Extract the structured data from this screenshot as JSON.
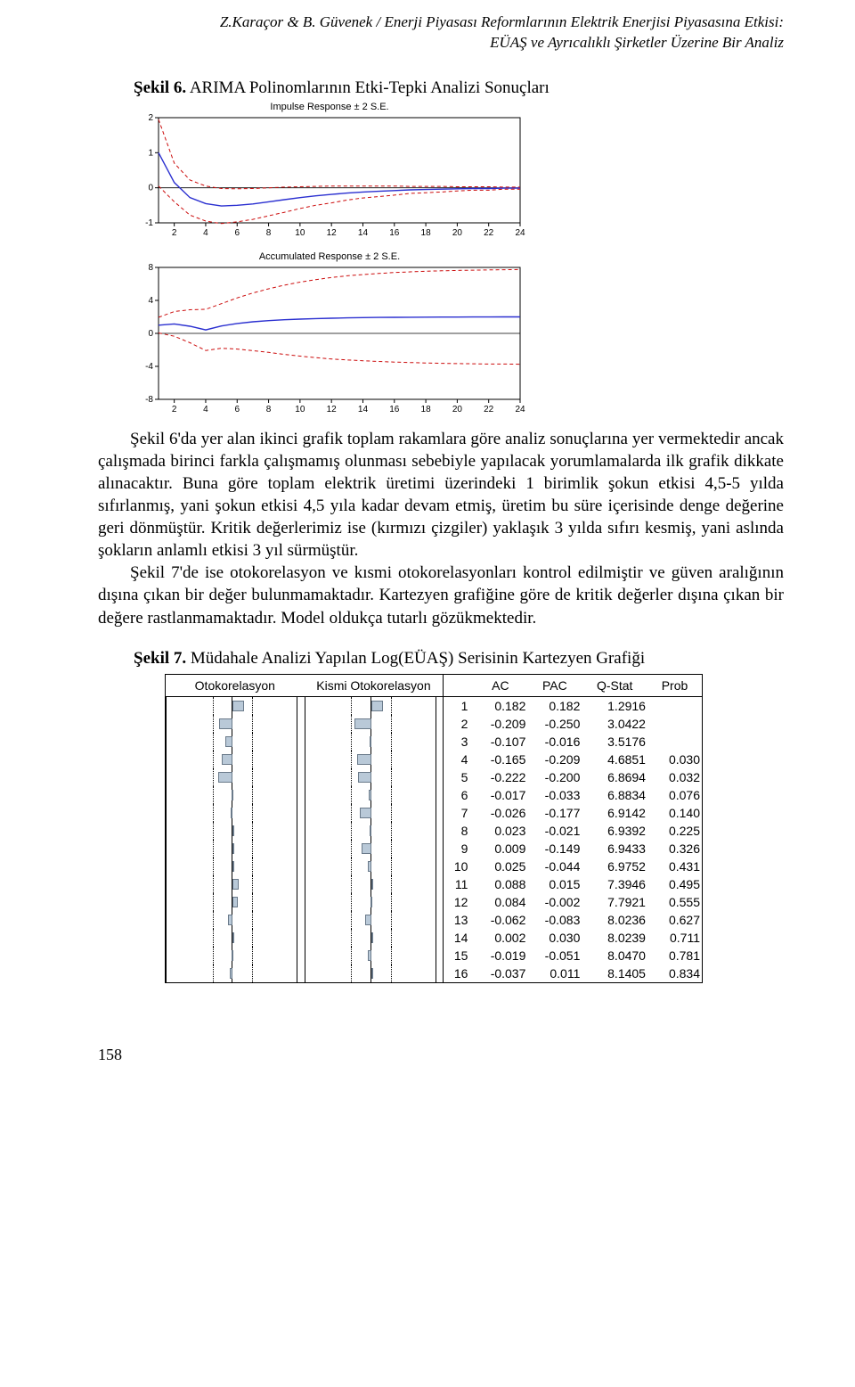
{
  "header": {
    "line1": "Z.Karaçor & B. Güvenek / Enerji Piyasası Reformlarının Elektrik Enerjisi Piyasasına Etkisi:",
    "line2": "EÜAŞ ve Ayrıcalıklı Şirketler Üzerine Bir Analiz"
  },
  "figure6": {
    "caption_bold": "Şekil 6.",
    "caption_rest": " ARIMA Polinomlarının Etki-Tepki Analizi Sonuçları",
    "chart1": {
      "type": "line",
      "title": "Impulse Response ± 2 S.E.",
      "title_fontsize": 11,
      "background_color": "#ffffff",
      "axis_color": "#000000",
      "xlim": [
        1,
        24
      ],
      "ylim": [
        -1,
        2
      ],
      "xticks": [
        2,
        4,
        6,
        8,
        10,
        12,
        14,
        16,
        18,
        20,
        22,
        24
      ],
      "yticks": [
        -1,
        0,
        1,
        2
      ],
      "tick_fontsize": 10,
      "zero_line_color": "#000000",
      "series": {
        "main": {
          "color": "#2a2fd0",
          "width": 1.4,
          "dash": "none",
          "y": [
            1.0,
            0.15,
            -0.28,
            -0.45,
            -0.52,
            -0.5,
            -0.46,
            -0.4,
            -0.34,
            -0.28,
            -0.23,
            -0.19,
            -0.15,
            -0.12,
            -0.1,
            -0.08,
            -0.06,
            -0.05,
            -0.04,
            -0.03,
            -0.02,
            -0.02,
            -0.01,
            -0.01
          ]
        },
        "upper": {
          "color": "#cc0c0c",
          "width": 1.0,
          "dash": "4,3",
          "y": [
            1.95,
            0.7,
            0.22,
            0.05,
            -0.02,
            -0.03,
            -0.02,
            0.0,
            0.02,
            0.03,
            0.04,
            0.05,
            0.05,
            0.05,
            0.05,
            0.05,
            0.04,
            0.04,
            0.04,
            0.03,
            0.03,
            0.03,
            0.02,
            0.02
          ]
        },
        "lower": {
          "color": "#cc0c0c",
          "width": 1.0,
          "dash": "4,3",
          "y": [
            0.05,
            -0.4,
            -0.78,
            -0.95,
            -1.02,
            -0.97,
            -0.9,
            -0.8,
            -0.7,
            -0.59,
            -0.5,
            -0.43,
            -0.35,
            -0.29,
            -0.25,
            -0.21,
            -0.16,
            -0.14,
            -0.12,
            -0.09,
            -0.07,
            -0.07,
            -0.04,
            -0.04
          ]
        }
      }
    },
    "chart2": {
      "type": "line",
      "title": "Accumulated Response ± 2 S.E.",
      "title_fontsize": 11,
      "background_color": "#ffffff",
      "axis_color": "#000000",
      "xlim": [
        1,
        24
      ],
      "ylim": [
        -8,
        8
      ],
      "xticks": [
        2,
        4,
        6,
        8,
        10,
        12,
        14,
        16,
        18,
        20,
        22,
        24
      ],
      "yticks": [
        -8,
        -4,
        0,
        4,
        8
      ],
      "tick_fontsize": 10,
      "zero_line_color": "#000000",
      "series": {
        "main": {
          "color": "#2a2fd0",
          "width": 1.4,
          "dash": "none",
          "y": [
            1.0,
            1.15,
            0.87,
            0.42,
            0.9,
            1.2,
            1.4,
            1.55,
            1.65,
            1.73,
            1.79,
            1.84,
            1.88,
            1.91,
            1.93,
            1.95,
            1.96,
            1.97,
            1.98,
            1.98,
            1.99,
            1.99,
            2.0,
            2.0
          ]
        },
        "upper": {
          "color": "#cc0c0c",
          "width": 1.0,
          "dash": "4,3",
          "y": [
            1.95,
            2.65,
            2.87,
            2.92,
            3.6,
            4.3,
            4.9,
            5.4,
            5.85,
            6.22,
            6.52,
            6.78,
            6.98,
            7.14,
            7.27,
            7.38,
            7.46,
            7.53,
            7.59,
            7.63,
            7.67,
            7.7,
            7.72,
            7.74
          ]
        },
        "lower": {
          "color": "#cc0c0c",
          "width": 1.0,
          "dash": "4,3",
          "y": [
            0.05,
            -0.35,
            -1.13,
            -2.08,
            -1.8,
            -1.9,
            -2.1,
            -2.3,
            -2.55,
            -2.76,
            -2.94,
            -3.1,
            -3.22,
            -3.32,
            -3.41,
            -3.48,
            -3.54,
            -3.59,
            -3.63,
            -3.66,
            -3.69,
            -3.72,
            -3.72,
            -3.74
          ]
        }
      }
    }
  },
  "body": {
    "p1": "Şekil 6'da yer alan ikinci grafik toplam rakamlara göre analiz sonuçlarına yer vermektedir ancak çalışmada birinci farkla çalışmamış olunması sebebiyle yapılacak yorumlamalarda ilk grafik dikkate alınacaktır. Buna göre toplam elektrik üretimi üzerindeki 1 birimlik şokun etkisi 4,5-5 yılda sıfırlanmış, yani şokun etkisi 4,5 yıla kadar devam etmiş, üretim bu süre içerisinde denge değerine geri dönmüştür. Kritik değerlerimiz ise (kırmızı çizgiler) yaklaşık 3 yılda sıfırı kesmiş, yani aslında şokların anlamlı etkisi 3 yıl sürmüştür.",
    "p2": "Şekil 7'de ise otokorelasyon ve kısmi otokorelasyonları kontrol edilmiştir ve güven aralığının dışına çıkan bir değer bulunmamaktadır. Kartezyen grafiğine göre de kritik değerler dışına çıkan bir değere rastlanmamaktadır. Model oldukça tutarlı gözükmektedir."
  },
  "figure7": {
    "caption_bold": "Şekil 7.",
    "caption_rest": " Müdahale Analizi Yapılan Log(EÜAŞ) Serisinin Kartezyen Grafiği",
    "columns": [
      "Otokorelasyon",
      "Kismi Otokorelasyon",
      "AC",
      "PAC",
      "Q-Stat",
      "Prob"
    ],
    "ci_half": 0.3,
    "bar_color": "#b9c9d8",
    "bar_border": "#6a7a8a",
    "rows": [
      {
        "lag": 1,
        "ac": 0.182,
        "pac": 0.182,
        "q": "1.2916",
        "p": ""
      },
      {
        "lag": 2,
        "ac": -0.209,
        "pac": -0.25,
        "q": "3.0422",
        "p": ""
      },
      {
        "lag": 3,
        "ac": -0.107,
        "pac": -0.016,
        "q": "3.5176",
        "p": ""
      },
      {
        "lag": 4,
        "ac": -0.165,
        "pac": -0.209,
        "q": "4.6851",
        "p": "0.030"
      },
      {
        "lag": 5,
        "ac": -0.222,
        "pac": -0.2,
        "q": "6.8694",
        "p": "0.032"
      },
      {
        "lag": 6,
        "ac": -0.017,
        "pac": -0.033,
        "q": "6.8834",
        "p": "0.076"
      },
      {
        "lag": 7,
        "ac": -0.026,
        "pac": -0.177,
        "q": "6.9142",
        "p": "0.140"
      },
      {
        "lag": 8,
        "ac": 0.023,
        "pac": -0.021,
        "q": "6.9392",
        "p": "0.225"
      },
      {
        "lag": 9,
        "ac": 0.009,
        "pac": -0.149,
        "q": "6.9433",
        "p": "0.326"
      },
      {
        "lag": 10,
        "ac": 0.025,
        "pac": -0.044,
        "q": "6.9752",
        "p": "0.431"
      },
      {
        "lag": 11,
        "ac": 0.088,
        "pac": 0.015,
        "q": "7.3946",
        "p": "0.495"
      },
      {
        "lag": 12,
        "ac": 0.084,
        "pac": -0.002,
        "q": "7.7921",
        "p": "0.555"
      },
      {
        "lag": 13,
        "ac": -0.062,
        "pac": -0.083,
        "q": "8.0236",
        "p": "0.627"
      },
      {
        "lag": 14,
        "ac": 0.002,
        "pac": 0.03,
        "q": "8.0239",
        "p": "0.711"
      },
      {
        "lag": 15,
        "ac": -0.019,
        "pac": -0.051,
        "q": "8.0470",
        "p": "0.781"
      },
      {
        "lag": 16,
        "ac": -0.037,
        "pac": 0.011,
        "q": "8.1405",
        "p": "0.834"
      }
    ]
  },
  "pageNumber": "158"
}
